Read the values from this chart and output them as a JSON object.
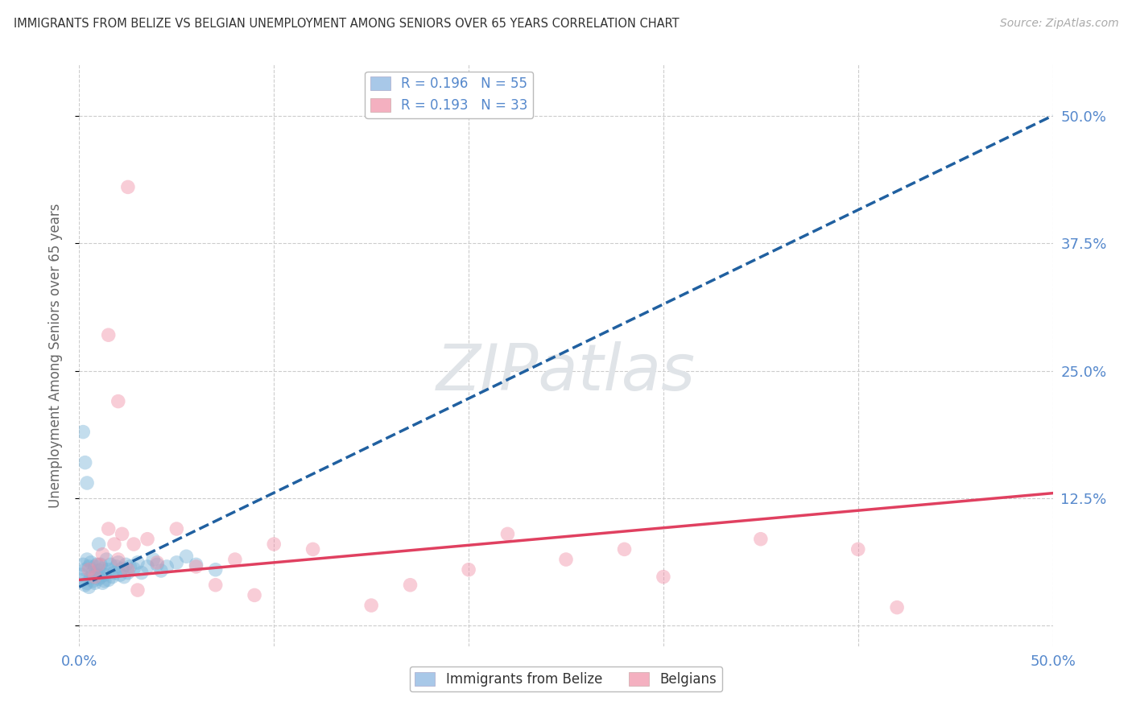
{
  "title": "IMMIGRANTS FROM BELIZE VS BELGIAN UNEMPLOYMENT AMONG SENIORS OVER 65 YEARS CORRELATION CHART",
  "source": "Source: ZipAtlas.com",
  "ylabel": "Unemployment Among Seniors over 65 years",
  "xlim": [
    0,
    0.5
  ],
  "ylim": [
    -0.02,
    0.55
  ],
  "xticks": [
    0.0,
    0.1,
    0.2,
    0.3,
    0.4,
    0.5
  ],
  "yticks": [
    0.0,
    0.125,
    0.25,
    0.375,
    0.5
  ],
  "xticklabels": [
    "0.0%",
    "",
    "",
    "",
    "",
    "50.0%"
  ],
  "yticklabels_right": [
    "",
    "12.5%",
    "25.0%",
    "37.5%",
    "50.0%"
  ],
  "legend_top": [
    {
      "label": "R = 0.196   N = 55",
      "color": "#a8c8e8"
    },
    {
      "label": "R = 0.193   N = 33",
      "color": "#f4b0c0"
    }
  ],
  "legend_bottom": [
    "Immigrants from Belize",
    "Belgians"
  ],
  "watermark": "ZIPatlas",
  "blue_scatter_x": [
    0.001,
    0.002,
    0.002,
    0.003,
    0.003,
    0.004,
    0.004,
    0.005,
    0.005,
    0.006,
    0.006,
    0.007,
    0.007,
    0.008,
    0.008,
    0.009,
    0.009,
    0.01,
    0.01,
    0.011,
    0.011,
    0.012,
    0.012,
    0.013,
    0.013,
    0.014,
    0.015,
    0.015,
    0.016,
    0.017,
    0.018,
    0.019,
    0.02,
    0.021,
    0.022,
    0.023,
    0.024,
    0.025,
    0.026,
    0.028,
    0.03,
    0.032,
    0.035,
    0.038,
    0.04,
    0.042,
    0.045,
    0.05,
    0.055,
    0.06,
    0.002,
    0.003,
    0.004,
    0.01,
    0.07
  ],
  "blue_scatter_y": [
    0.05,
    0.045,
    0.06,
    0.04,
    0.055,
    0.065,
    0.042,
    0.038,
    0.058,
    0.048,
    0.062,
    0.044,
    0.052,
    0.058,
    0.042,
    0.05,
    0.06,
    0.046,
    0.054,
    0.06,
    0.048,
    0.042,
    0.056,
    0.05,
    0.044,
    0.065,
    0.055,
    0.045,
    0.06,
    0.048,
    0.052,
    0.058,
    0.062,
    0.05,
    0.056,
    0.048,
    0.06,
    0.052,
    0.058,
    0.056,
    0.062,
    0.052,
    0.058,
    0.065,
    0.06,
    0.054,
    0.058,
    0.062,
    0.068,
    0.06,
    0.19,
    0.16,
    0.14,
    0.08,
    0.055
  ],
  "pink_scatter_x": [
    0.005,
    0.008,
    0.01,
    0.012,
    0.015,
    0.018,
    0.02,
    0.022,
    0.025,
    0.028,
    0.03,
    0.035,
    0.04,
    0.05,
    0.06,
    0.07,
    0.08,
    0.09,
    0.1,
    0.12,
    0.15,
    0.17,
    0.2,
    0.22,
    0.25,
    0.28,
    0.3,
    0.35,
    0.4,
    0.42,
    0.015,
    0.02,
    0.025
  ],
  "pink_scatter_y": [
    0.055,
    0.048,
    0.06,
    0.07,
    0.095,
    0.08,
    0.065,
    0.09,
    0.055,
    0.08,
    0.035,
    0.085,
    0.062,
    0.095,
    0.058,
    0.04,
    0.065,
    0.03,
    0.08,
    0.075,
    0.02,
    0.04,
    0.055,
    0.09,
    0.065,
    0.075,
    0.048,
    0.085,
    0.075,
    0.018,
    0.285,
    0.22,
    0.43
  ],
  "blue_line_x": [
    0.0,
    0.5
  ],
  "blue_line_y": [
    0.038,
    0.5
  ],
  "pink_line_x": [
    0.0,
    0.5
  ],
  "pink_line_y": [
    0.045,
    0.13
  ],
  "blue_scatter_color": "#7ab4d8",
  "pink_scatter_color": "#f090a8",
  "blue_line_color": "#2060a0",
  "pink_line_color": "#e04060",
  "background_color": "#ffffff",
  "grid_color": "#cccccc",
  "title_color": "#333333",
  "source_color": "#aaaaaa",
  "axis_label_color": "#666666",
  "tick_color": "#5588cc",
  "watermark_color": "#e0e4e8"
}
